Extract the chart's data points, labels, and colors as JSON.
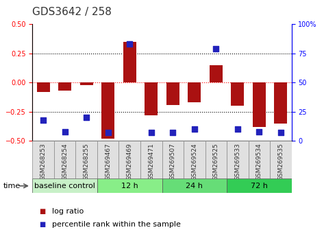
{
  "title": "GDS3642 / 258",
  "samples": [
    "GSM268253",
    "GSM268254",
    "GSM268255",
    "GSM269467",
    "GSM269469",
    "GSM269471",
    "GSM269507",
    "GSM269524",
    "GSM269525",
    "GSM269533",
    "GSM269534",
    "GSM269535"
  ],
  "log_ratio": [
    -0.08,
    -0.07,
    -0.02,
    -0.48,
    0.35,
    -0.28,
    -0.19,
    -0.17,
    0.15,
    -0.2,
    -0.38,
    -0.35
  ],
  "percentile_rank": [
    18,
    8,
    20,
    7,
    83,
    7,
    7,
    10,
    79,
    10,
    8,
    7
  ],
  "groups": [
    {
      "label": "baseline control",
      "start": 0,
      "end": 3,
      "color": "#c8f0c8"
    },
    {
      "label": "12 h",
      "start": 3,
      "end": 6,
      "color": "#88ee88"
    },
    {
      "label": "24 h",
      "start": 6,
      "end": 9,
      "color": "#66dd77"
    },
    {
      "label": "72 h",
      "start": 9,
      "end": 12,
      "color": "#33cc55"
    }
  ],
  "bar_color": "#aa1111",
  "dot_color": "#2222bb",
  "ylim_left": [
    -0.5,
    0.5
  ],
  "ylim_right": [
    0,
    100
  ],
  "yticks_left": [
    -0.5,
    -0.25,
    0,
    0.25,
    0.5
  ],
  "yticks_right": [
    0,
    25,
    50,
    75,
    100
  ],
  "hlines": [
    -0.25,
    0.0,
    0.25
  ],
  "background_color": "#ffffff",
  "bar_width": 0.6,
  "dot_size": 28,
  "sample_label_fontsize": 6.5,
  "title_fontsize": 11,
  "group_fontsize": 8,
  "legend_fontsize": 8
}
